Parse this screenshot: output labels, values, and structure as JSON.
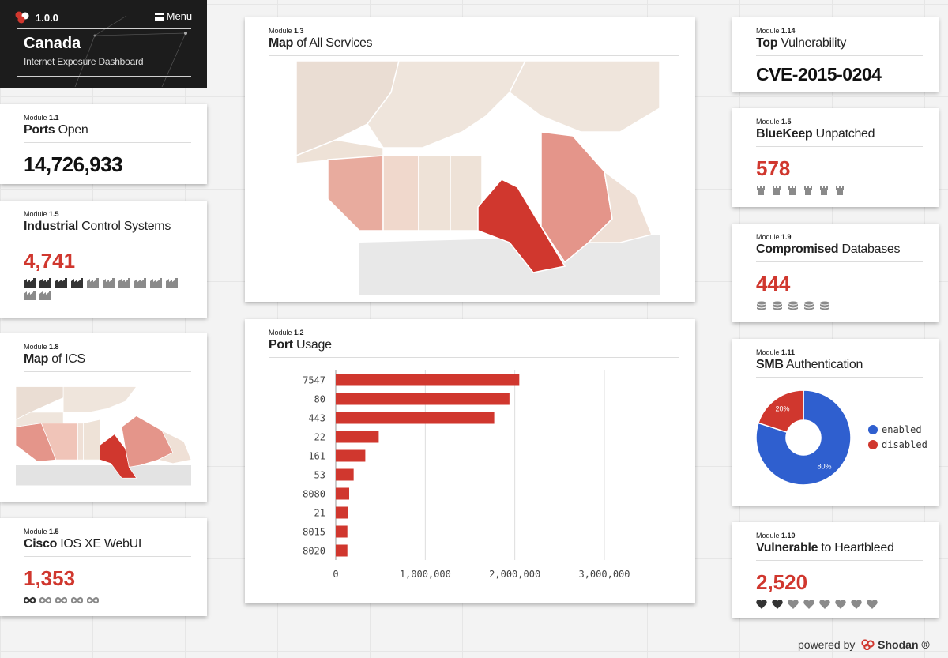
{
  "header": {
    "version": "1.0.0",
    "menu_label": "Menu",
    "country": "Canada",
    "subtitle": "Internet Exposure Dashboard"
  },
  "ports_open": {
    "module_prefix": "Module",
    "module_num": "1.1",
    "title_bold": "Ports",
    "title_rest": "Open",
    "value": "14,726,933"
  },
  "ics": {
    "module_prefix": "Module",
    "module_num": "1.5",
    "title_bold": "Industrial",
    "title_rest": "Control Systems",
    "value": "4,741",
    "icon": "factory-icon",
    "icons_active": 4,
    "icons_total": 12
  },
  "map_ics": {
    "module_prefix": "Module",
    "module_num": "1.8",
    "title_bold": "Map",
    "title_rest": "of ICS"
  },
  "cisco": {
    "module_prefix": "Module",
    "module_num": "1.5",
    "title_bold": "Cisco",
    "title_rest": "IOS XE WebUI",
    "value": "1,353",
    "icon": "infinity-icon",
    "icons_active": 1,
    "icons_total": 5
  },
  "map_services": {
    "module_prefix": "Module",
    "module_num": "1.3",
    "title_bold": "Map",
    "title_rest": "of All Services"
  },
  "port_usage": {
    "module_prefix": "Module",
    "module_num": "1.2",
    "title_bold": "Port",
    "title_rest": "Usage",
    "chart_data": {
      "type": "bar",
      "orientation": "horizontal",
      "categories": [
        "7547",
        "80",
        "443",
        "22",
        "161",
        "53",
        "8080",
        "21",
        "8015",
        "8020"
      ],
      "values": [
        2050000,
        1940000,
        1770000,
        480000,
        330000,
        200000,
        150000,
        140000,
        130000,
        130000
      ],
      "x_ticks": [
        0,
        1000000,
        2000000,
        3000000
      ],
      "x_tick_labels": [
        "0",
        "1,000,000",
        "2,000,000",
        "3,000,000"
      ],
      "xlim": [
        0,
        3000000
      ],
      "title": "Port Usage",
      "color": "#d0372e"
    }
  },
  "top_vuln": {
    "module_prefix": "Module",
    "module_num": "1.14",
    "title_bold": "Top",
    "title_rest": "Vulnerability",
    "value": "CVE-2015-0204"
  },
  "bluekeep": {
    "module_prefix": "Module",
    "module_num": "1.5",
    "title_bold": "BlueKeep",
    "title_rest": "Unpatched",
    "value": "578",
    "icon": "castle-icon",
    "icons_active": 0,
    "icons_total": 6
  },
  "databases": {
    "module_prefix": "Module",
    "module_num": "1.9",
    "title_bold": "Compromised",
    "title_rest": "Databases",
    "value": "444",
    "icon": "database-icon",
    "icons_active": 0,
    "icons_total": 5
  },
  "smb": {
    "module_prefix": "Module",
    "module_num": "1.11",
    "title_bold": "SMB",
    "title_rest": "Authentication",
    "chart_data": {
      "type": "pie",
      "donut": true,
      "labels": [
        "enabled",
        "disabled"
      ],
      "values": [
        80,
        20
      ],
      "value_labels": [
        "80%",
        "20%"
      ],
      "colors": [
        "#2f5fcf",
        "#d0372e"
      ]
    }
  },
  "heartbleed": {
    "module_prefix": "Module",
    "module_num": "1.10",
    "title_bold": "Vulnerable",
    "title_rest": "to Heartbleed",
    "value": "2,520",
    "icon": "heart-icon",
    "icons_active": 2,
    "icons_total": 8
  },
  "footer": {
    "powered_by": "powered by",
    "brand": "Shodan ®"
  },
  "colors": {
    "accent": "#d0372e",
    "dark": "#1c1c1c",
    "icon_active": "#333333",
    "icon_inactive": "#8a8a8a"
  }
}
